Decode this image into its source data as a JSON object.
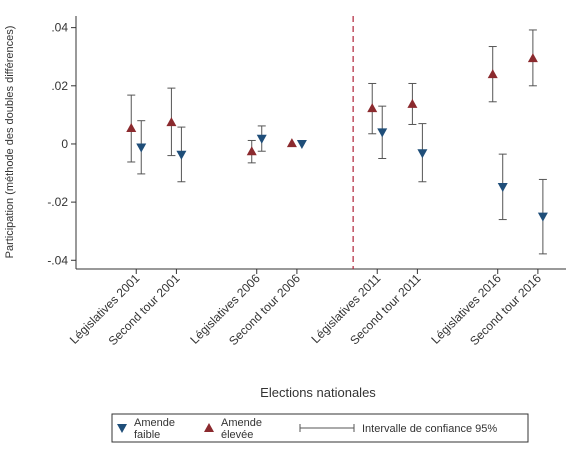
{
  "chart_data": {
    "type": "scatter",
    "ylabel": "Participation (méthode des doubles différences)",
    "xlabel": "Elections nationales",
    "ylim": [
      -0.043,
      0.044
    ],
    "yticks": [
      {
        "value": 0.04,
        "label": ".04"
      },
      {
        "value": 0.02,
        "label": ".02"
      },
      {
        "value": 0,
        "label": "0"
      },
      {
        "value": -0.02,
        "label": "-.02"
      },
      {
        "value": -0.04,
        "label": "-.04"
      }
    ],
    "x_categories": [
      {
        "label": "Législatives 2001",
        "x": 1
      },
      {
        "label": "Second tour 2001",
        "x": 2
      },
      {
        "label": "Législatives 2006",
        "x": 4
      },
      {
        "label": "Second tour 2006",
        "x": 5
      },
      {
        "label": "Législatives 2011",
        "x": 7
      },
      {
        "label": "Second tour 2011",
        "x": 8
      },
      {
        "label": "Législatives 2016",
        "x": 10
      },
      {
        "label": "Second tour 2016",
        "x": 11
      }
    ],
    "xlim": [
      -0.5,
      11.7
    ],
    "reference_line_x": 6.4,
    "series": [
      {
        "name": "Amende faible",
        "marker": "triangle-down",
        "color": "#1f4e79",
        "points": [
          {
            "x": 1,
            "y": -0.0012,
            "lo": -0.0103,
            "hi": 0.008
          },
          {
            "x": 2,
            "y": -0.0037,
            "lo": -0.013,
            "hi": 0.0058
          },
          {
            "x": 4,
            "y": 0.0018,
            "lo": -0.0025,
            "hi": 0.0062
          },
          {
            "x": 5,
            "y": 0.0,
            "lo": null,
            "hi": null
          },
          {
            "x": 7,
            "y": 0.004,
            "lo": -0.005,
            "hi": 0.013
          },
          {
            "x": 8,
            "y": -0.0032,
            "lo": -0.013,
            "hi": 0.007
          },
          {
            "x": 10,
            "y": -0.0148,
            "lo": -0.026,
            "hi": -0.0035
          },
          {
            "x": 11,
            "y": -0.025,
            "lo": -0.0378,
            "hi": -0.0122
          }
        ]
      },
      {
        "name": "Amende élevée",
        "marker": "triangle-up",
        "color": "#8b2a2e",
        "points": [
          {
            "x": 1,
            "y": 0.0055,
            "lo": -0.0062,
            "hi": 0.0168
          },
          {
            "x": 2,
            "y": 0.0075,
            "lo": -0.004,
            "hi": 0.0192
          },
          {
            "x": 4,
            "y": -0.0025,
            "lo": -0.0065,
            "hi": 0.0012
          },
          {
            "x": 5,
            "y": 0.0003,
            "lo": null,
            "hi": null
          },
          {
            "x": 7,
            "y": 0.0123,
            "lo": 0.0035,
            "hi": 0.0208
          },
          {
            "x": 8,
            "y": 0.0138,
            "lo": 0.0067,
            "hi": 0.0208
          },
          {
            "x": 10,
            "y": 0.024,
            "lo": 0.0145,
            "hi": 0.0335
          },
          {
            "x": 11,
            "y": 0.0295,
            "lo": 0.02,
            "hi": 0.0392
          }
        ]
      }
    ],
    "legend": {
      "placement": "bottom",
      "entries": [
        {
          "line1": "Amende",
          "line2": "faible",
          "symbol": "triangle-down",
          "color": "#1f4e79"
        },
        {
          "line1": "Amende",
          "line2": "élevée",
          "symbol": "triangle-up",
          "color": "#8b2a2e"
        },
        {
          "line1": "Intervalle de confiance 95%",
          "line2": "",
          "symbol": "ci",
          "color": "#555555"
        }
      ]
    },
    "grid": false
  }
}
